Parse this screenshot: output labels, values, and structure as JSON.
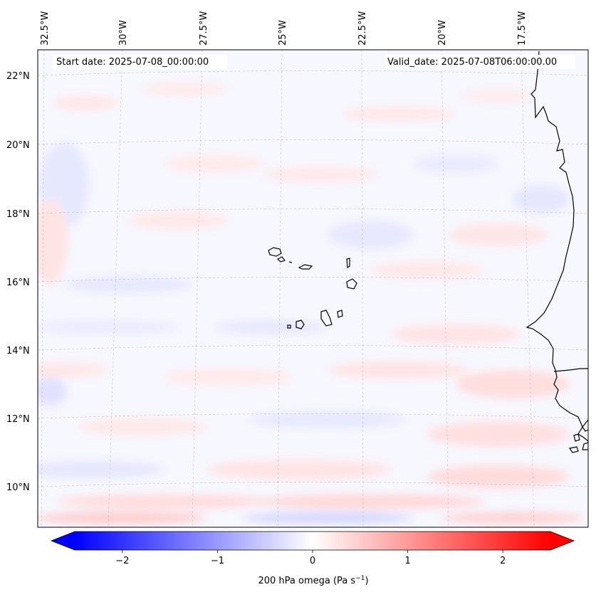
{
  "header": {
    "start_date": "Start date: 2025-07-08_00:00:00",
    "valid_date": "Valid_date: 2025-07-08T06:00:00.00"
  },
  "map": {
    "region": "Eastern tropical Atlantic — Cape Verde and West African coast",
    "lon_labels": [
      "32.5°W",
      "30°W",
      "27.5°W",
      "25°W",
      "22.5°W",
      "20°W",
      "17.5°W"
    ],
    "lat_labels": [
      "22°N",
      "20°N",
      "18°N",
      "16°N",
      "14°N",
      "12°N",
      "10°N"
    ]
  },
  "colorbar": {
    "label_prefix": "200 hPa omega (Pa s",
    "label_exp": "−1",
    "label_suffix": ")",
    "ticks": [
      "−2",
      "−1",
      "0",
      "1",
      "2"
    ],
    "tick_values": [
      -2,
      -1,
      0,
      1,
      2
    ],
    "vmin": -2.5,
    "vmax": 2.5,
    "cmap": "bwr",
    "colors": {
      "low": "#0000ff",
      "mid": "#ffffff",
      "high": "#ff0000"
    }
  },
  "colors": {
    "coast": "#000000",
    "grid": "#b0b0b0"
  }
}
